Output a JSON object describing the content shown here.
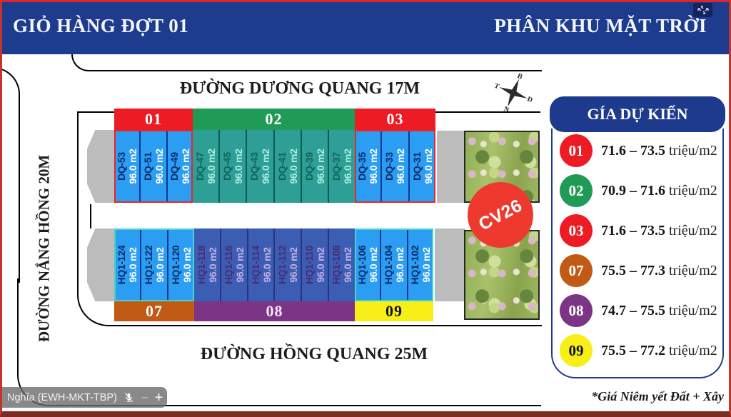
{
  "header": {
    "left_title": "GIỎ HÀNG ĐỢT 01",
    "right_title": "PHÂN KHU MẶT TRỜI"
  },
  "streets": {
    "top": "ĐƯỜNG DƯƠNG QUANG 17M",
    "left": "ĐƯỜNG NẮNG HỒNG 20M",
    "bottom": "ĐƯỜNG HỒNG QUANG 25M"
  },
  "compass": {
    "north": "B",
    "east": "Đ",
    "south": "N",
    "west": "T"
  },
  "park": {
    "label": "CV26",
    "color": "#ee392e"
  },
  "blocks": [
    {
      "id": "01",
      "row": "top",
      "colors": {
        "header": "#ed1c24",
        "header_text": "#ffffff",
        "lot_bg": "#2b9ef3",
        "code": "#0a2a6b",
        "area": "#ffffff",
        "divider": "#0d3a8f",
        "outline": "#e8262a"
      },
      "lots": [
        {
          "code": "DQ-53",
          "area": "96.0 m2"
        },
        {
          "code": "DQ-51",
          "area": "96.0 m2"
        },
        {
          "code": "DQ-49",
          "area": "96.0 m2"
        }
      ]
    },
    {
      "id": "02",
      "row": "top",
      "colors": {
        "header": "#1f9b55",
        "header_text": "#ffffff",
        "lot_bg": "#2d9f97",
        "code": "#10655a",
        "area": "#aeeedd",
        "divider": "#0e5a50",
        "outline": ""
      },
      "lots": [
        {
          "code": "DQ-47",
          "area": "96.0 m2"
        },
        {
          "code": "DQ-45",
          "area": "96.0 m2"
        },
        {
          "code": "DQ-43",
          "area": "96.0 m2"
        },
        {
          "code": "DQ-41",
          "area": "96.0 m2"
        },
        {
          "code": "DQ-39",
          "area": "96.0 m2"
        },
        {
          "code": "DQ-37",
          "area": "96.0 m2"
        }
      ]
    },
    {
      "id": "03",
      "row": "top",
      "colors": {
        "header": "#ed1c24",
        "header_text": "#ffffff",
        "lot_bg": "#2b9ef3",
        "code": "#0a2a6b",
        "area": "#ffffff",
        "divider": "#0d3a8f",
        "outline": "#e8262a"
      },
      "lots": [
        {
          "code": "DQ-35",
          "area": "96.0 m2"
        },
        {
          "code": "DQ-33",
          "area": "96.0 m2"
        },
        {
          "code": "DQ-31",
          "area": "96.0 m2"
        }
      ]
    },
    {
      "id": "07",
      "row": "bottom",
      "colors": {
        "header": "#c05a15",
        "header_text": "#ffffff",
        "lot_bg": "#2b9ef3",
        "code": "#0a2a6b",
        "area": "#ffffff",
        "divider": "#0d3a8f",
        "outline": "#49d6c2"
      },
      "lots": [
        {
          "code": "HQ1-124",
          "area": "96.0 m2"
        },
        {
          "code": "HQ1-122",
          "area": "96.0 m2"
        },
        {
          "code": "HQ1-120",
          "area": "96.0 m2"
        }
      ]
    },
    {
      "id": "08",
      "row": "bottom",
      "colors": {
        "header": "#7c3585",
        "header_text": "#f8e8fa",
        "lot_bg": "#3b5eb4",
        "code": "#4a2a72",
        "area": "#c9b0e4",
        "divider": "#28357e",
        "outline": ""
      },
      "lots": [
        {
          "code": "HQ1-118",
          "area": "96.0 m2"
        },
        {
          "code": "HQ1-116",
          "area": "96.0 m2"
        },
        {
          "code": "HQ1-114",
          "area": "96.0 m2"
        },
        {
          "code": "HQ1-112",
          "area": "96.0 m2"
        },
        {
          "code": "HQ1-110",
          "area": "96.0 m2"
        },
        {
          "code": "HQ1-108",
          "area": "96.0 m2"
        }
      ]
    },
    {
      "id": "09",
      "row": "bottom",
      "colors": {
        "header": "#f8ee18",
        "header_text": "#111111",
        "lot_bg": "#2b9ef3",
        "code": "#0a2a6b",
        "area": "#ffffff",
        "divider": "#0d3a8f",
        "outline": "#49d6c2"
      },
      "lots": [
        {
          "code": "HQ1-106",
          "area": "96.0 m2"
        },
        {
          "code": "HQ1-104",
          "area": "96.0 m2"
        },
        {
          "code": "HQ1-102",
          "area": "96.0 m2"
        }
      ]
    }
  ],
  "price_panel": {
    "title": "GÍA DỰ KIẾN",
    "rows": [
      {
        "id": "01",
        "color": "#ed1c24",
        "text_color": "#ffffff",
        "range": "71.6 – 73.5",
        "unit": "triệu/m2"
      },
      {
        "id": "02",
        "color": "#1f9b55",
        "text_color": "#ffffff",
        "range": "70.9 – 71.6",
        "unit": "triệu/m2"
      },
      {
        "id": "03",
        "color": "#ed1c24",
        "text_color": "#ffffff",
        "range": "71.6 – 73.5",
        "unit": "triệu/m2"
      },
      {
        "id": "07",
        "color": "#c05a15",
        "text_color": "#ffffff",
        "range": "75.5 – 77.3",
        "unit": "triệu/m2"
      },
      {
        "id": "08",
        "color": "#7c3585",
        "text_color": "#ffffff",
        "range": "74.7 – 75.5",
        "unit": "triệu/m2"
      },
      {
        "id": "09",
        "color": "#f8ee18",
        "text_color": "#111111",
        "range": "75.5 – 77.2",
        "unit": "triệu/m2"
      }
    ],
    "footnote": "*Giá Niêm yết Đất + Xây"
  },
  "call_overlay": {
    "participant": "Nghĩa (EWH-MKT-TBP)",
    "zoom_out": "–",
    "zoom_in": "+"
  }
}
